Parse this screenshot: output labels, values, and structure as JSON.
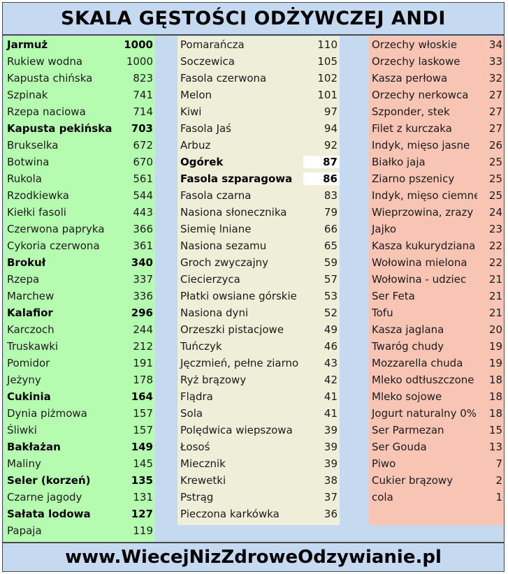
{
  "title": "SKALA GĘSTOŚCI ODŻYWCZEJ ANDI",
  "footer": "www.WiecejNizZdroweOdzywianie.pl",
  "colors": {
    "green": "#b6fcb0",
    "beige": "#efeed9",
    "red": "#f8c5b5",
    "blue": "#c5d9f1"
  },
  "green": [
    {
      "name": "Jarmuż",
      "value": "1000",
      "bold": true
    },
    {
      "name": "Rukiew wodna",
      "value": "1000"
    },
    {
      "name": "Kapusta chińska",
      "value": "823"
    },
    {
      "name": "Szpinak",
      "value": "741"
    },
    {
      "name": "Rzepa naciowa",
      "value": "714"
    },
    {
      "name": "Kapusta pekińska",
      "value": "703",
      "bold": true
    },
    {
      "name": "Brukselka",
      "value": "672"
    },
    {
      "name": "Botwina",
      "value": "670"
    },
    {
      "name": "Rukola",
      "value": "561"
    },
    {
      "name": "Rzodkiewka",
      "value": "544"
    },
    {
      "name": "Kiełki fasoli",
      "value": "443"
    },
    {
      "name": "Czerwona papryka",
      "value": "366"
    },
    {
      "name": "Cykoria czerwona",
      "value": "361"
    },
    {
      "name": "Brokuł",
      "value": "340",
      "bold": true
    },
    {
      "name": "Rzepa",
      "value": "337"
    },
    {
      "name": "Marchew",
      "value": "336"
    },
    {
      "name": "Kalafior",
      "value": "296",
      "bold": true
    },
    {
      "name": "Karczoch",
      "value": "244"
    },
    {
      "name": "Truskawki",
      "value": "212"
    },
    {
      "name": "Pomidor",
      "value": "191"
    },
    {
      "name": "Jeżyny",
      "value": "178"
    },
    {
      "name": "Cukinia",
      "value": "164",
      "bold": true
    },
    {
      "name": "Dynia piżmowa",
      "value": "157"
    },
    {
      "name": "Śliwki",
      "value": "157"
    },
    {
      "name": "Bakłażan",
      "value": "149",
      "bold": true
    },
    {
      "name": "Maliny",
      "value": "145"
    },
    {
      "name": "Seler (korzeń)",
      "value": "135",
      "bold": true
    },
    {
      "name": "Czarne jagody",
      "value": "131"
    },
    {
      "name": "Sałata lodowa",
      "value": "127",
      "bold": true
    },
    {
      "name": "Papaja",
      "value": "119"
    }
  ],
  "beige": [
    {
      "name": "Pomarańcza",
      "value": "110"
    },
    {
      "name": "Soczewica",
      "value": "105"
    },
    {
      "name": "Fasola czerwona",
      "value": "102"
    },
    {
      "name": "Melon",
      "value": "101"
    },
    {
      "name": "Kiwi",
      "value": "97"
    },
    {
      "name": "Fasola Jaś",
      "value": "94"
    },
    {
      "name": "Arbuz",
      "value": "92"
    },
    {
      "name": "Ogórek",
      "value": "87",
      "bold": true,
      "boxed": true
    },
    {
      "name": "Fasola szparagowa",
      "value": "86",
      "bold": true,
      "boxed": true
    },
    {
      "name": "Fasola czarna",
      "value": "83"
    },
    {
      "name": "Nasiona słonecznika",
      "value": "79"
    },
    {
      "name": "Siemię lniane",
      "value": "66"
    },
    {
      "name": "Nasiona sezamu",
      "value": "65"
    },
    {
      "name": "Groch zwyczajny",
      "value": "59"
    },
    {
      "name": "Ciecierzyca",
      "value": "57"
    },
    {
      "name": "Płatki owsiane górskie",
      "value": "53"
    },
    {
      "name": "Nasiona dyni",
      "value": "52"
    },
    {
      "name": "Orzeszki pistacjowe",
      "value": "49"
    },
    {
      "name": "Tuńczyk",
      "value": "46"
    },
    {
      "name": "Jęczmień, pełne ziarno",
      "value": "43"
    },
    {
      "name": "Ryż brązowy",
      "value": "42"
    },
    {
      "name": "Flądra",
      "value": "41"
    },
    {
      "name": "Sola",
      "value": "41"
    },
    {
      "name": "Polędwica wiepszowa",
      "value": "39"
    },
    {
      "name": "Łosoś",
      "value": "39"
    },
    {
      "name": "Miecznik",
      "value": "39"
    },
    {
      "name": "Krewetki",
      "value": "38"
    },
    {
      "name": "Pstrąg",
      "value": "37"
    },
    {
      "name": "Pieczona karkówka",
      "value": "36"
    }
  ],
  "red": [
    {
      "name": "Orzechy włoskie",
      "value": "34"
    },
    {
      "name": "Orzechy laskowe",
      "value": "33"
    },
    {
      "name": "Kasza perłowa",
      "value": "32"
    },
    {
      "name": "Orzechy nerkowca",
      "value": "27"
    },
    {
      "name": "Szponder, stek",
      "value": "27"
    },
    {
      "name": "Filet z kurczaka",
      "value": "27"
    },
    {
      "name": "Indyk, mięso jasne",
      "value": "26"
    },
    {
      "name": "Białko jaja",
      "value": "25"
    },
    {
      "name": "Ziarno pszenicy",
      "value": "25"
    },
    {
      "name": "Indyk, mięso ciemne",
      "value": "25"
    },
    {
      "name": "Wieprzowina, zrazy",
      "value": "24"
    },
    {
      "name": "Jajko",
      "value": "23"
    },
    {
      "name": "Kasza kukurydziana",
      "value": "22"
    },
    {
      "name": "Wołowina mielona",
      "value": "22"
    },
    {
      "name": "Wołowina - udziec",
      "value": "21"
    },
    {
      "name": "Ser Feta",
      "value": "21"
    },
    {
      "name": "Tofu",
      "value": "21"
    },
    {
      "name": "Kasza jaglana",
      "value": "20"
    },
    {
      "name": "Twaróg chudy",
      "value": "19"
    },
    {
      "name": "Mozzarella chuda",
      "value": "19"
    },
    {
      "name": "Mleko odtłuszczone",
      "value": "18"
    },
    {
      "name": "Mleko sojowe",
      "value": "18"
    },
    {
      "name": "Jogurt naturalny 0%",
      "value": "18"
    },
    {
      "name": "Ser Parmezan",
      "value": "15"
    },
    {
      "name": "Ser Gouda",
      "value": "13"
    },
    {
      "name": "Piwo",
      "value": "7"
    },
    {
      "name": "Cukier brązowy",
      "value": "2"
    },
    {
      "name": "cola",
      "value": "1"
    }
  ]
}
